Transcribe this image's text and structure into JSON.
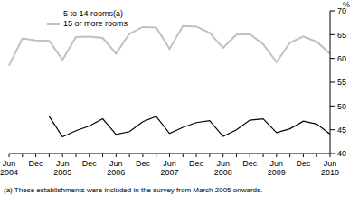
{
  "chart_data": {
    "type": "line",
    "categories": [
      "Jun 2004",
      null,
      "Dec",
      null,
      "Jun 2005",
      null,
      "Dec",
      null,
      "Jun 2006",
      null,
      "Dec",
      null,
      "Jun 2007",
      null,
      "Dec",
      null,
      "Jun 2008",
      null,
      "Dec",
      null,
      "Jun 2009",
      null,
      "Dec",
      null,
      "Jun 2010"
    ],
    "series": [
      {
        "name": "5 to 14 rooms(a)",
        "color": "#000000",
        "values": [
          null,
          null,
          null,
          47.8,
          43.5,
          44.8,
          45.8,
          47.3,
          44.0,
          44.6,
          46.7,
          47.8,
          44.2,
          45.5,
          46.5,
          46.9,
          43.6,
          45.0,
          47.0,
          47.3,
          44.4,
          45.2,
          46.8,
          46.2,
          44.1
        ]
      },
      {
        "name": "15 or more rooms",
        "color": "#c0c0c0",
        "values": [
          58.5,
          64.2,
          63.8,
          63.7,
          59.7,
          64.5,
          64.6,
          64.3,
          61.0,
          65.2,
          66.6,
          66.5,
          62.0,
          66.8,
          66.7,
          65.4,
          62.2,
          65.0,
          65.1,
          63.0,
          59.2,
          63.3,
          64.6,
          63.5,
          61.0
        ]
      }
    ],
    "ylabel": "%",
    "ylim": [
      40,
      70
    ],
    "yticks": [
      40,
      45,
      50,
      55,
      60,
      65,
      70
    ],
    "grid": false,
    "legend": "top-left",
    "footnote": "(a) These establishments were included in the survey from March 2005 onwards."
  }
}
